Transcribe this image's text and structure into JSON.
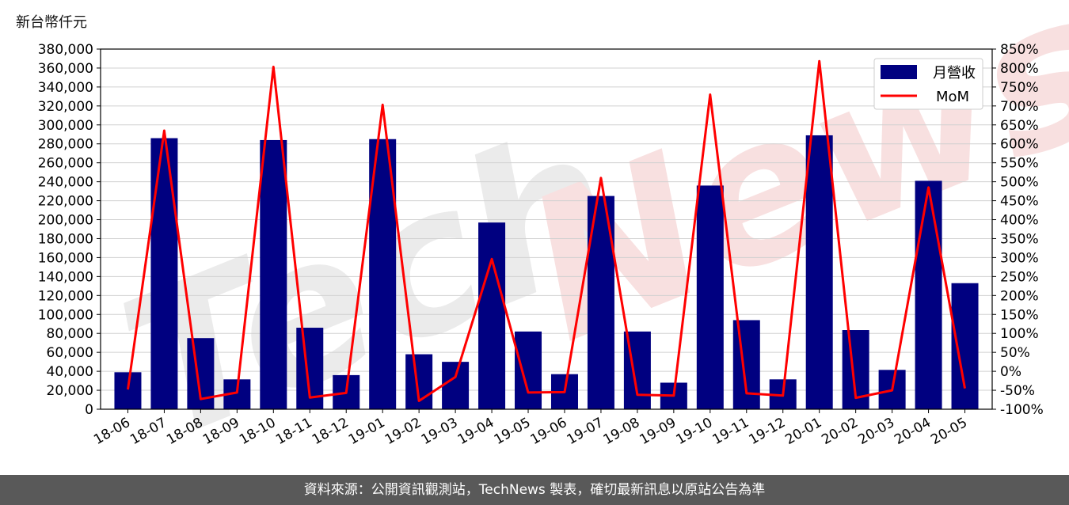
{
  "header": {
    "unit_label": "新台幣仟元"
  },
  "footer": {
    "text": "資料來源：公開資訊觀測站，TechNews 製表，確切最新訊息以原站公告為準"
  },
  "watermark": {
    "text_tech": "Tech",
    "text_news": "News"
  },
  "colors": {
    "bar": "#000080",
    "line": "#ff0000",
    "grid": "#d0d0d0",
    "footer_bg": "#595959",
    "watermark_tech": "#e8e8e8",
    "watermark_news": "#f7dede"
  },
  "chart_data": {
    "type": "bar",
    "categories": [
      "18-06",
      "18-07",
      "18-08",
      "18-09",
      "18-10",
      "18-11",
      "18-12",
      "19-01",
      "19-02",
      "19-03",
      "19-04",
      "19-05",
      "19-06",
      "19-07",
      "19-08",
      "19-09",
      "19-10",
      "19-11",
      "19-12",
      "20-01",
      "20-02",
      "20-03",
      "20-04",
      "20-05"
    ],
    "series": [
      {
        "name": "月營收",
        "type": "bar",
        "axis": "left",
        "values": [
          39000,
          286000,
          75000,
          31500,
          284000,
          86000,
          36000,
          285000,
          58000,
          50000,
          197000,
          82000,
          37000,
          225000,
          82000,
          28000,
          236000,
          94000,
          31500,
          289000,
          83500,
          41500,
          241000,
          133000
        ]
      },
      {
        "name": "MoM",
        "type": "line",
        "axis": "right",
        "values": [
          -48,
          635,
          -73,
          -56,
          803,
          -69,
          -57,
          703,
          -78,
          -15,
          296,
          -56,
          -55,
          510,
          -62,
          -64,
          730,
          -58,
          -64,
          818,
          -70,
          -50,
          485,
          -45
        ]
      }
    ],
    "y_left": {
      "ylim": [
        0,
        380000
      ],
      "ticks": [
        "0",
        "20,000",
        "40,000",
        "60,000",
        "80,000",
        "100,000",
        "120,000",
        "140,000",
        "160,000",
        "180,000",
        "200,000",
        "220,000",
        "240,000",
        "260,000",
        "280,000",
        "300,000",
        "320,000",
        "340,000",
        "360,000",
        "380,000"
      ]
    },
    "y_right": {
      "ylim": [
        -100,
        850
      ],
      "ticks": [
        "-100%",
        "-50%",
        "0%",
        "50%",
        "100%",
        "150%",
        "200%",
        "250%",
        "300%",
        "350%",
        "400%",
        "450%",
        "500%",
        "550%",
        "600%",
        "650%",
        "700%",
        "750%",
        "800%",
        "850%"
      ]
    },
    "grid": true,
    "legend_position": "top-right"
  }
}
